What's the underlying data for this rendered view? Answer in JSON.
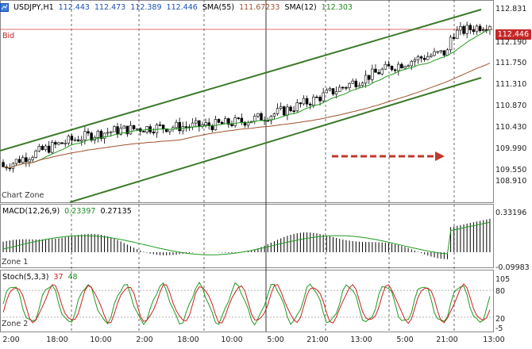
{
  "header": {
    "symbol": "USDJPY,H1",
    "open": "112.443",
    "high": "112.473",
    "low": "112.389",
    "close": "112.446",
    "sma55_label": "SMA(55)",
    "sma55_value": "111.67233",
    "sma12_label": "SMA(12)",
    "sma12_value": "112.303"
  },
  "main_pane": {
    "bid_label": "Bid",
    "zone_label": "Chart Zone",
    "current_price": "112.446",
    "price_ticks": [
      "112.831",
      "112.190",
      "111.750",
      "111.310",
      "110.870",
      "110.430",
      "109.990",
      "109.550",
      "108.910"
    ]
  },
  "macd_pane": {
    "label": "MACD(12,26,9)",
    "value1": "0.23397",
    "value2": "0.27135",
    "zone_label": "Zone 1",
    "ticks": [
      "0.33196",
      "-0.09983"
    ]
  },
  "stoch_pane": {
    "label": "Stoch(5,3,3)",
    "value1": "37",
    "value2": "48",
    "zone_label": "Zone 2",
    "ticks": [
      "105",
      "80",
      "20",
      "-5"
    ]
  },
  "time_axis": [
    "2:00",
    "18:00",
    "10:00",
    "2:00",
    "18:00",
    "10:00",
    "5:00",
    "21:00",
    "13:00",
    "5:00",
    "21:00",
    "13:00"
  ],
  "colors": {
    "bull": "#ffffff",
    "bear": "#000000",
    "sma_fast": "#1f9a1f",
    "sma_slow": "#a0522d",
    "channel": "#3c7a2a",
    "bid_line": "#d04040",
    "arrow": "#c0392b",
    "macd_signal": "#1f9a1f",
    "stoch_main": "#1f9a1f",
    "stoch_signal": "#cc2222"
  }
}
